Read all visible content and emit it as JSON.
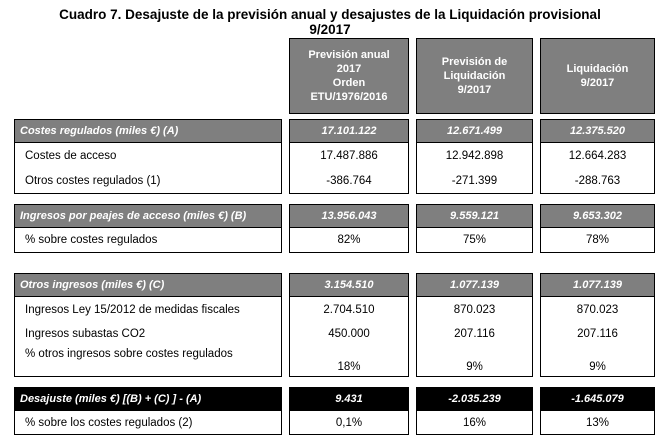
{
  "title": {
    "line1": "Cuadro 7. Desajuste de la previsión anual y desajustes de la Liquidación provisional",
    "line2": "9/2017"
  },
  "columns": [
    {
      "lines": [
        "Previsión anual",
        "2017",
        "Orden",
        "ETU/1976/2016"
      ]
    },
    {
      "lines": [
        "Previsión de",
        "Liquidación",
        "9/2017"
      ]
    },
    {
      "lines": [
        "Liquidación",
        "9/2017"
      ]
    }
  ],
  "sections": [
    {
      "header": {
        "label": "Costes regulados (miles €) (A)",
        "values": [
          "17.101.122",
          "12.671.499",
          "12.375.520"
        ]
      },
      "rows": [
        {
          "label": "Costes de acceso",
          "values": [
            "17.487.886",
            "12.942.898",
            "12.664.283"
          ]
        },
        {
          "label": "Otros costes regulados (1)",
          "values": [
            "-386.764",
            "-271.399",
            "-288.763"
          ]
        }
      ]
    },
    {
      "header": {
        "label": "Ingresos por peajes de acceso (miles €) (B)",
        "values": [
          "13.956.043",
          "9.559.121",
          "9.653.302"
        ]
      },
      "rows": [
        {
          "label": "% sobre costes regulados",
          "values": [
            "82%",
            "75%",
            "78%"
          ]
        }
      ]
    },
    {
      "header": {
        "label": "Otros ingresos (miles €) (C)",
        "values": [
          "3.154.510",
          "1.077.139",
          "1.077.139"
        ]
      },
      "rows": [
        {
          "label": "Ingresos Ley 15/2012 de medidas fiscales",
          "values": [
            "2.704.510",
            "870.023",
            "870.023"
          ]
        },
        {
          "label": "Ingresos subastas CO2",
          "values": [
            "450.000",
            "207.116",
            "207.116"
          ]
        },
        {
          "label": "% otros ingresos sobre costes regulados",
          "values": [
            "18%",
            "9%",
            "9%"
          ]
        }
      ]
    },
    {
      "header": {
        "label": "Desajuste (miles €) [(B) + (C) ] - (A)",
        "values": [
          "9.431",
          "-2.035.239",
          "-1.645.079"
        ]
      },
      "rows": [
        {
          "label": "% sobre los costes regulados (2)",
          "values": [
            "0,1%",
            "16%",
            "13%"
          ]
        }
      ]
    }
  ]
}
